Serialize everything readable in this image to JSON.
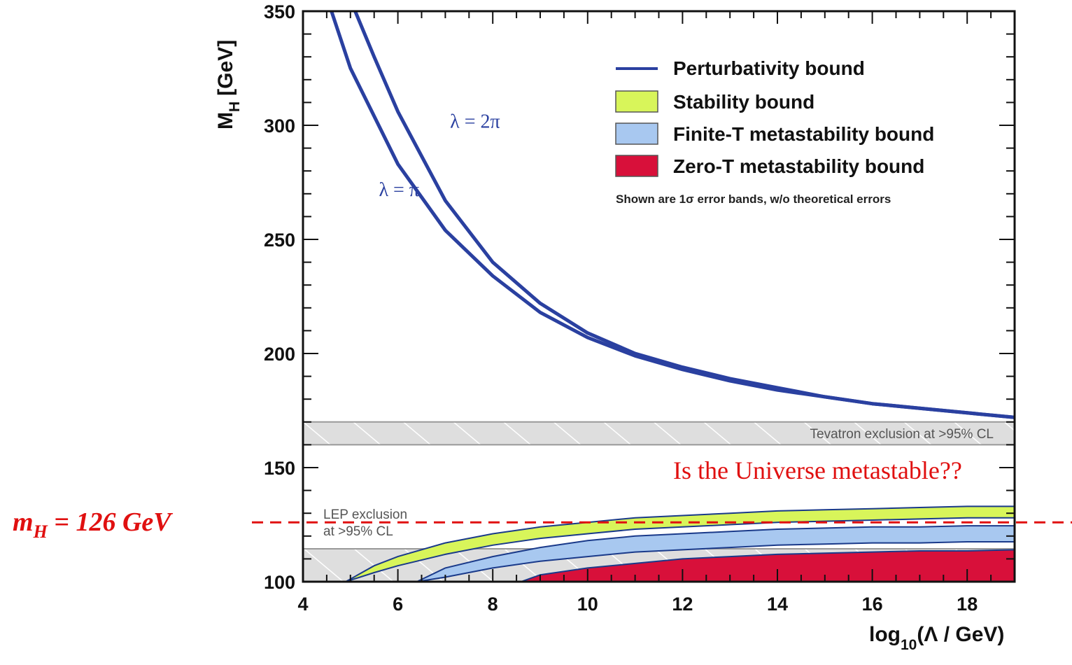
{
  "chart_data": {
    "type": "line",
    "xlabel_main": "log",
    "xlabel_sub": "10",
    "xlabel_tail": "(Λ / GeV)",
    "ylabel_main": "M",
    "ylabel_sub": "H",
    "ylabel_tail": "[GeV]",
    "xlim": [
      4,
      19
    ],
    "ylim": [
      100,
      350
    ],
    "x_ticks": [
      "4",
      "6",
      "8",
      "10",
      "12",
      "14",
      "16",
      "18"
    ],
    "y_ticks": [
      "100",
      "150",
      "200",
      "250",
      "300",
      "350"
    ],
    "legend_position": "top-right",
    "legend": [
      {
        "label": "Perturbativity bound",
        "kind": "line",
        "color": "#2a40a0"
      },
      {
        "label": "Stability bound",
        "kind": "box",
        "color": "#d8f55a"
      },
      {
        "label": "Finite-T metastability bound",
        "kind": "box",
        "color": "#a8c8f0"
      },
      {
        "label": "Zero-T metastability bound",
        "kind": "box",
        "color": "#d8103a"
      }
    ],
    "legend_note": "Shown are 1σ error bands, w/o theoretical errors",
    "series": [
      {
        "name": "λ = π",
        "kind": "line",
        "x": [
          4.6,
          5,
          6,
          7,
          8,
          9,
          10,
          11,
          12,
          13,
          14,
          15,
          16,
          17,
          18,
          19
        ],
        "y": [
          350,
          325,
          283,
          254,
          234,
          218,
          207,
          199,
          193,
          188,
          184,
          181,
          178,
          176,
          174,
          172
        ]
      },
      {
        "name": "λ = 2π",
        "kind": "line",
        "x": [
          5.1,
          5.5,
          6,
          7,
          8,
          9,
          10,
          11,
          12,
          13,
          14,
          15,
          16,
          17,
          18,
          19
        ],
        "y": [
          350,
          330,
          306,
          267,
          240,
          222,
          209,
          200,
          194,
          189,
          185,
          181,
          178,
          176,
          174,
          172
        ]
      },
      {
        "name": "Stability bound",
        "kind": "band",
        "color": "#d8f55a",
        "x": [
          4.9,
          5.5,
          6,
          7,
          8,
          9,
          10,
          11,
          12,
          13,
          14,
          15,
          16,
          17,
          18,
          19
        ],
        "y_low": [
          100,
          104,
          107,
          112,
          116,
          119,
          121,
          123,
          124,
          125,
          126,
          126.5,
          127,
          127.5,
          128,
          128
        ],
        "y_high": [
          100,
          107,
          111,
          117,
          121,
          124,
          126,
          128,
          129,
          130,
          131,
          131.5,
          132,
          132.5,
          133,
          133
        ]
      },
      {
        "name": "Finite-T metastability bound",
        "kind": "band",
        "color": "#a8c8f0",
        "x": [
          6.4,
          7,
          8,
          9,
          10,
          11,
          12,
          13,
          14,
          15,
          16,
          17,
          18,
          19
        ],
        "y_low": [
          100,
          102,
          106,
          109,
          111,
          113,
          114,
          115,
          116,
          116.5,
          117,
          117,
          117.5,
          117.5
        ],
        "y_high": [
          100,
          106,
          111,
          115,
          118,
          120,
          121,
          122,
          123,
          123.5,
          124,
          124,
          124.5,
          124.5
        ]
      },
      {
        "name": "Zero-T metastability bound",
        "kind": "band",
        "color": "#d8103a",
        "x": [
          8.6,
          9,
          10,
          11,
          12,
          13,
          14,
          15,
          16,
          17,
          18,
          19
        ],
        "y_low": [
          100,
          100,
          100,
          100,
          100,
          100,
          100,
          100,
          100,
          100,
          100,
          100
        ],
        "y_high": [
          100,
          103,
          106,
          108,
          110,
          111,
          112,
          112.5,
          113,
          113.5,
          113.5,
          114
        ]
      }
    ],
    "exclusion_bands": [
      {
        "label": "Tevatron exclusion at >95% CL",
        "y_low": 160,
        "y_high": 170
      },
      {
        "label_line1": "LEP exclusion",
        "label_line2": "at >95% CL",
        "y_low": 100,
        "y_high": 114.4
      }
    ],
    "reference_line": {
      "y": 126,
      "color": "#e01010",
      "label_main": "m",
      "label_sub": "H",
      "label_tail": " = 126 GeV"
    },
    "annotation": "Is the Universe metastable??",
    "curve_labels": [
      {
        "text": "λ = π",
        "x": 5.6,
        "y": 269
      },
      {
        "text": "λ = 2π",
        "x": 7.1,
        "y": 299
      }
    ]
  }
}
